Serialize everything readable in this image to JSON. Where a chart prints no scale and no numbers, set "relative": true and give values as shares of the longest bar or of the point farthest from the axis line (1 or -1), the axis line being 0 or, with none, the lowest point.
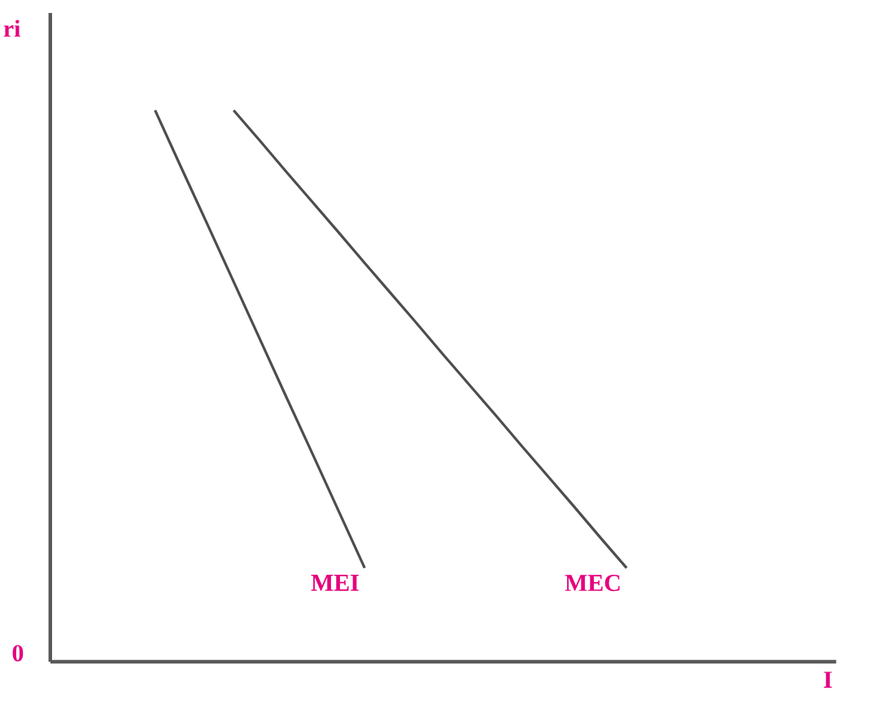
{
  "chart_data": {
    "type": "line",
    "relative": true,
    "ylabel": "ri",
    "xlabel": "I",
    "annotations": [
      "0"
    ],
    "categories": [
      null,
      null,
      null,
      null,
      null,
      null,
      null,
      null,
      null,
      null,
      null,
      null,
      null,
      null,
      null,
      null,
      null,
      null,
      null,
      null,
      null,
      null,
      null,
      null,
      null,
      null,
      null,
      null,
      null,
      null
    ],
    "series": [
      {
        "name": "MEI",
        "color": "#4d4d4d",
        "values": [
          null,
          null,
          null,
          1,
          0.896,
          0.793,
          0.689,
          0.585,
          0.481,
          0.378,
          0.274,
          0.17,
          null,
          null,
          null,
          null,
          null,
          null,
          null,
          null,
          null,
          null,
          null,
          null,
          null,
          null,
          null,
          null,
          null,
          null
        ]
      },
      {
        "name": "MEC",
        "color": "#4d4d4d",
        "values": [
          null,
          null,
          null,
          null,
          null,
          null,
          1,
          0.945,
          0.889,
          0.834,
          0.779,
          0.723,
          0.668,
          0.613,
          0.557,
          0.502,
          0.447,
          0.391,
          0.336,
          0.281,
          0.225,
          0.17,
          null,
          null,
          null,
          null,
          null,
          null,
          null,
          null
        ]
      }
    ],
    "legend": false,
    "marker": "none",
    "line_style": "solid"
  }
}
